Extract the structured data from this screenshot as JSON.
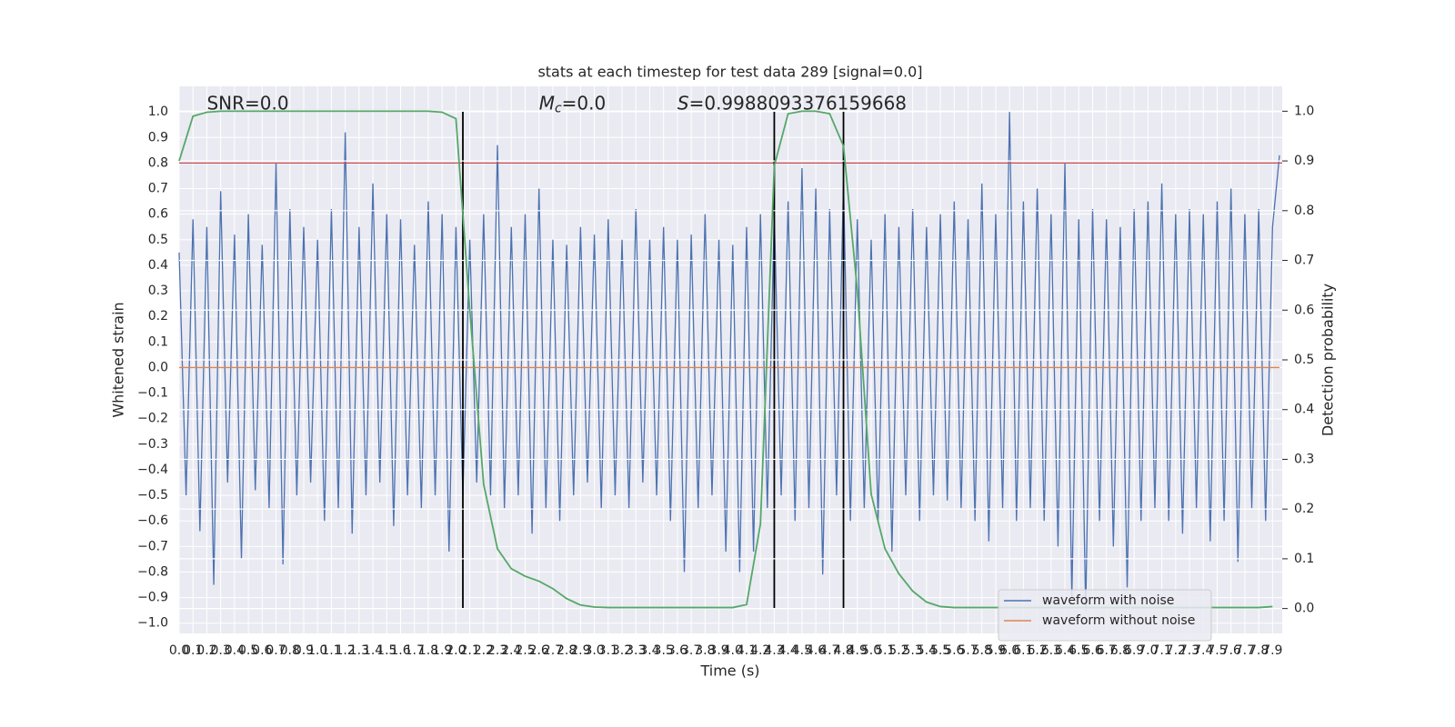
{
  "chart_data": {
    "type": "line",
    "title": "stats at each timestep for test data 289 [signal=0.0]",
    "xlabel": "Time (s)",
    "ylabel": "Whitened strain",
    "y2label": "Detection probability",
    "annotations": [
      {
        "x": 0.2,
        "y": 1.03,
        "text": "SNR=0.0"
      },
      {
        "x": 2.6,
        "y": 1.03,
        "symbol": "M",
        "subscript": "c",
        "text": "=0.0"
      },
      {
        "x": 3.6,
        "y": 1.03,
        "symbol": "S",
        "text": "=0.9988093376159668"
      }
    ],
    "xlim": [
      0,
      7.97
    ],
    "ylim": [
      -1.04,
      1.1
    ],
    "y2lim": [
      -0.05,
      1.05
    ],
    "xticks": [
      {
        "value": 0,
        "label": "0.0"
      },
      0.1,
      0.2,
      0.3,
      0.4,
      0.5,
      0.6,
      0.7,
      0.8,
      0.9,
      {
        "value": 1,
        "label": "1.0"
      },
      1.1,
      1.2,
      1.3,
      1.4,
      1.5,
      1.6,
      1.7,
      1.8,
      1.9,
      {
        "value": 2,
        "label": "2.0"
      },
      2.1,
      2.2,
      2.3,
      2.4,
      2.5,
      2.6,
      2.7,
      2.8,
      2.9,
      {
        "value": 3,
        "label": "3.0"
      },
      3.1,
      3.2,
      3.3,
      3.4,
      3.5,
      3.6,
      3.7,
      3.8,
      3.9,
      {
        "value": 4,
        "label": "4.0"
      },
      4.1,
      4.2,
      4.3,
      4.4,
      4.5,
      4.6,
      4.7,
      4.8,
      4.9,
      {
        "value": 5,
        "label": "5.0"
      },
      5.1,
      5.2,
      5.3,
      5.4,
      5.5,
      5.6,
      5.7,
      5.8,
      5.9,
      {
        "value": 6,
        "label": "6.0"
      },
      6.1,
      6.2,
      6.3,
      6.4,
      6.5,
      6.6,
      6.7,
      6.8,
      6.9,
      {
        "value": 7,
        "label": "7.0"
      },
      7.1,
      7.2,
      7.3,
      7.4,
      7.5,
      7.6,
      7.7,
      7.8,
      7.9
    ],
    "yticks": [
      {
        "value": -1,
        "label": "−1.0"
      },
      {
        "value": -0.9,
        "label": "−0.9"
      },
      {
        "value": -0.8,
        "label": "−0.8"
      },
      {
        "value": -0.7,
        "label": "−0.7"
      },
      {
        "value": -0.6,
        "label": "−0.6"
      },
      {
        "value": -0.5,
        "label": "−0.5"
      },
      {
        "value": -0.4,
        "label": "−0.4"
      },
      {
        "value": -0.3,
        "label": "−0.3"
      },
      {
        "value": -0.2,
        "label": "−0.2"
      },
      {
        "value": -0.1,
        "label": "−0.1"
      },
      {
        "value": 0,
        "label": "0.0"
      },
      0.1,
      0.2,
      0.3,
      0.4,
      0.5,
      0.6,
      0.7,
      0.8,
      0.9,
      {
        "value": 1,
        "label": "1.0"
      }
    ],
    "y2ticks": [
      {
        "value": 0,
        "label": "0.0"
      },
      0.1,
      0.2,
      0.3,
      0.4,
      0.5,
      0.6,
      0.7,
      0.8,
      0.9,
      {
        "value": 1,
        "label": "1.0"
      }
    ],
    "grid": true,
    "legend": "lower right",
    "series": [
      {
        "name": "waveform with noise",
        "color": "#4c72b0",
        "x": [
          0,
          0.05,
          0.1,
          0.15,
          0.2,
          0.25,
          0.3,
          0.35,
          0.4,
          0.45,
          0.5,
          0.55,
          0.6,
          0.65,
          0.7,
          0.75,
          0.8,
          0.85,
          0.9,
          0.95,
          1,
          1.05,
          1.1,
          1.15,
          1.2,
          1.25,
          1.3,
          1.35,
          1.4,
          1.45,
          1.5,
          1.55,
          1.6,
          1.65,
          1.7,
          1.75,
          1.8,
          1.85,
          1.9,
          1.95,
          2,
          2.05,
          2.1,
          2.15,
          2.2,
          2.25,
          2.3,
          2.35,
          2.4,
          2.45,
          2.5,
          2.55,
          2.6,
          2.65,
          2.7,
          2.75,
          2.8,
          2.85,
          2.9,
          2.95,
          3,
          3.05,
          3.1,
          3.15,
          3.2,
          3.25,
          3.3,
          3.35,
          3.4,
          3.45,
          3.5,
          3.55,
          3.6,
          3.65,
          3.7,
          3.75,
          3.8,
          3.85,
          3.9,
          3.95,
          4,
          4.05,
          4.1,
          4.15,
          4.2,
          4.25,
          4.3,
          4.35,
          4.4,
          4.45,
          4.5,
          4.55,
          4.6,
          4.65,
          4.7,
          4.75,
          4.8,
          4.85,
          4.9,
          4.95,
          5,
          5.05,
          5.1,
          5.15,
          5.2,
          5.25,
          5.3,
          5.35,
          5.4,
          5.45,
          5.5,
          5.55,
          5.6,
          5.65,
          5.7,
          5.75,
          5.8,
          5.85,
          5.9,
          5.95,
          6,
          6.05,
          6.1,
          6.15,
          6.2,
          6.25,
          6.3,
          6.35,
          6.4,
          6.45,
          6.5,
          6.55,
          6.6,
          6.65,
          6.7,
          6.75,
          6.8,
          6.85,
          6.9,
          6.95,
          7,
          7.05,
          7.1,
          7.15,
          7.2,
          7.25,
          7.3,
          7.35,
          7.4,
          7.45,
          7.5,
          7.55,
          7.6,
          7.65,
          7.7,
          7.75,
          7.8,
          7.85,
          7.9,
          7.95
        ],
        "values": [
          0.45,
          -0.5,
          0.58,
          -0.64,
          0.55,
          -0.85,
          0.69,
          -0.45,
          0.52,
          -0.75,
          0.6,
          -0.48,
          0.48,
          -0.55,
          0.8,
          -0.77,
          0.62,
          -0.5,
          0.55,
          -0.45,
          0.5,
          -0.6,
          0.62,
          -0.55,
          0.92,
          -0.65,
          0.55,
          -0.5,
          0.72,
          -0.45,
          0.6,
          -0.62,
          0.58,
          -0.5,
          0.48,
          -0.55,
          0.65,
          -0.5,
          0.6,
          -0.72,
          0.55,
          -0.5,
          0.5,
          -0.45,
          0.6,
          -0.5,
          0.87,
          -0.55,
          0.55,
          -0.5,
          0.6,
          -0.65,
          0.7,
          -0.55,
          0.5,
          -0.6,
          0.48,
          -0.5,
          0.55,
          -0.45,
          0.52,
          -0.55,
          0.58,
          -0.5,
          0.5,
          -0.55,
          0.62,
          -0.45,
          0.5,
          -0.5,
          0.55,
          -0.6,
          0.5,
          -0.8,
          0.52,
          -0.55,
          0.6,
          -0.5,
          0.5,
          -0.72,
          0.48,
          -0.8,
          0.55,
          -0.72,
          0.6,
          -0.55,
          0.6,
          -0.5,
          0.65,
          -0.6,
          0.78,
          -0.55,
          0.7,
          -0.81,
          0.62,
          -0.5,
          0.72,
          -0.6,
          0.58,
          -0.55,
          0.5,
          -0.6,
          0.6,
          -0.72,
          0.55,
          -0.5,
          0.62,
          -0.6,
          0.55,
          -0.5,
          0.6,
          -0.52,
          0.65,
          -0.55,
          0.58,
          -0.6,
          0.72,
          -0.68,
          0.6,
          -0.55,
          1.0,
          -0.6,
          0.65,
          -0.55,
          0.7,
          -0.6,
          0.6,
          -0.7,
          0.8,
          -0.9,
          0.58,
          -0.95,
          0.62,
          -0.6,
          0.58,
          -0.7,
          0.55,
          -0.86,
          0.62,
          -0.6,
          0.65,
          -0.55,
          0.72,
          -0.6,
          0.6,
          -0.65,
          0.62,
          -0.55,
          0.6,
          -0.68,
          0.65,
          -0.6,
          0.7,
          -0.76,
          0.6,
          -0.55,
          0.62,
          -0.6,
          0.55,
          0.83
        ]
      },
      {
        "name": "waveform without noise",
        "color": "#dd8452",
        "x": [
          0,
          7.95
        ],
        "values": [
          0,
          0
        ]
      },
      {
        "color": "#c44e52",
        "x": [
          0,
          7.97
        ],
        "values": [
          0.8,
          0.8
        ]
      },
      {
        "color": "#55a868",
        "axis": "y2",
        "x": [
          0,
          0.1,
          0.2,
          0.3,
          0.4,
          0.5,
          0.6,
          0.7,
          0.8,
          0.9,
          1,
          1.1,
          1.2,
          1.3,
          1.4,
          1.5,
          1.6,
          1.7,
          1.8,
          1.9,
          2,
          2.1,
          2.2,
          2.3,
          2.4,
          2.5,
          2.6,
          2.7,
          2.8,
          2.9,
          3,
          3.1,
          3.2,
          3.3,
          3.4,
          3.5,
          3.6,
          3.7,
          3.8,
          3.9,
          4,
          4.1,
          4.2,
          4.3,
          4.4,
          4.5,
          4.6,
          4.7,
          4.8,
          4.9,
          5,
          5.1,
          5.2,
          5.3,
          5.4,
          5.5,
          5.6,
          5.7,
          5.8,
          5.9,
          6,
          6.1,
          6.2,
          6.3,
          6.4,
          6.5,
          6.6,
          6.7,
          6.8,
          6.9,
          7,
          7.1,
          7.2,
          7.3,
          7.4,
          7.5,
          7.6,
          7.7,
          7.8,
          7.9
        ],
        "values": [
          0.9,
          0.99,
          0.998,
          1,
          1,
          1,
          1,
          1,
          1,
          1,
          1,
          1,
          1,
          1,
          1,
          1,
          1,
          1,
          1,
          0.998,
          0.985,
          0.6,
          0.25,
          0.12,
          0.08,
          0.065,
          0.055,
          0.04,
          0.02,
          0.007,
          0.003,
          0.002,
          0.002,
          0.002,
          0.002,
          0.002,
          0.002,
          0.002,
          0.002,
          0.002,
          0.002,
          0.008,
          0.17,
          0.89,
          0.995,
          1,
          1,
          0.995,
          0.93,
          0.64,
          0.23,
          0.12,
          0.07,
          0.035,
          0.013,
          0.004,
          0.002,
          0.002,
          0.002,
          0.002,
          0.002,
          0.002,
          0.002,
          0.002,
          0.002,
          0.002,
          0.002,
          0.002,
          0.002,
          0.002,
          0.002,
          0.002,
          0.002,
          0.002,
          0.002,
          0.002,
          0.002,
          0.002,
          0.002,
          0.004
        ]
      }
    ],
    "vlines": [
      2.05,
      4.3,
      4.8
    ],
    "vline_color": "#000000"
  }
}
